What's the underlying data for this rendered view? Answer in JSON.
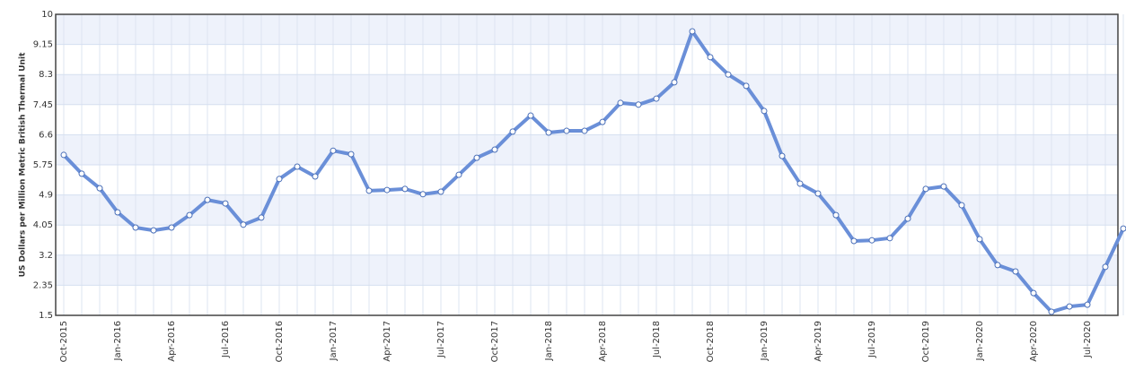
{
  "chart_data": {
    "type": "line",
    "y_label": "US Dollars per Million Metric British Thermal Unit",
    "categories": [
      "Oct-2015",
      null,
      null,
      "Jan-2016",
      null,
      null,
      "Apr-2016",
      null,
      null,
      "Jul-2016",
      null,
      null,
      "Oct-2016",
      null,
      null,
      "Jan-2017",
      null,
      null,
      "Apr-2017",
      null,
      null,
      "Jul-2017",
      null,
      null,
      "Oct-2017",
      null,
      null,
      "Jan-2018",
      null,
      null,
      "Apr-2018",
      null,
      null,
      "Jul-2018",
      null,
      null,
      "Oct-2018",
      null,
      null,
      "Jan-2019",
      null,
      null,
      "Apr-2019",
      null,
      null,
      "Jul-2019",
      null,
      null,
      "Oct-2019",
      null,
      null,
      "Jan-2020",
      null,
      null,
      "Apr-2020",
      null,
      null,
      "Jul-2020",
      null,
      null
    ],
    "series": [
      {
        "color": "#6a8fd8",
        "values": [
          6.03,
          5.5,
          5.09,
          4.41,
          3.98,
          3.9,
          3.98,
          4.33,
          4.76,
          4.66,
          4.06,
          4.26,
          5.35,
          5.7,
          5.42,
          6.15,
          6.05,
          5.02,
          5.04,
          5.07,
          4.92,
          4.99,
          5.47,
          5.95,
          6.18,
          6.69,
          7.14,
          6.66,
          6.71,
          6.71,
          6.96,
          7.5,
          7.45,
          7.62,
          8.08,
          9.52,
          8.79,
          8.3,
          7.98,
          7.27,
          6.0,
          5.22,
          4.94,
          4.33,
          3.6,
          3.62,
          3.68,
          4.23,
          5.07,
          5.14,
          4.61,
          3.65,
          2.92,
          2.74,
          2.13,
          1.6,
          1.75,
          1.8,
          2.87,
          3.95
        ]
      }
    ],
    "ylim": [
      1.5,
      10
    ],
    "yticks": [
      1.5,
      2.35,
      3.2,
      4.05,
      4.9,
      5.75,
      6.6,
      7.45,
      8.3,
      9.15,
      10
    ],
    "grid": true
  }
}
